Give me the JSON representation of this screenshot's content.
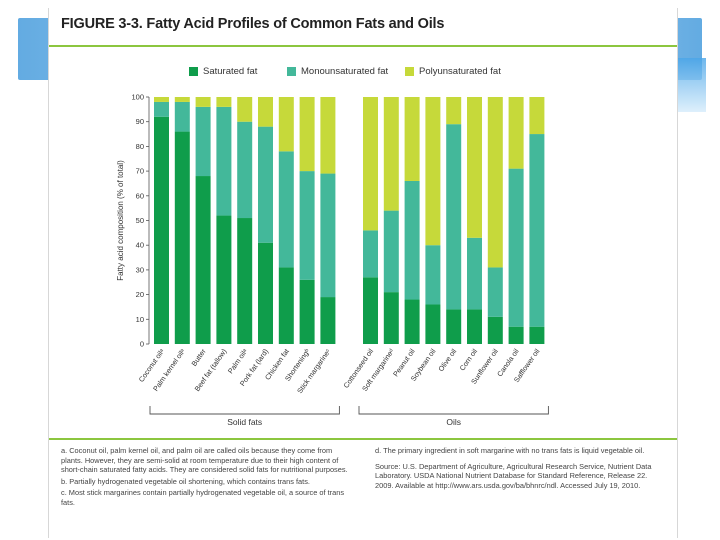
{
  "figure": {
    "title": "FIGURE 3-3. Fatty Acid Profiles of Common Fats and Oils"
  },
  "colors": {
    "saturated": "#0f9d4b",
    "mono": "#43b89a",
    "poly": "#c6d93a",
    "accent_rule": "#8cc63f"
  },
  "chart_data": {
    "type": "bar",
    "stacked": true,
    "ylabel": "Fatty acid composition (% of total)",
    "ylim": [
      0,
      100
    ],
    "yticks": [
      0,
      10,
      20,
      30,
      40,
      50,
      60,
      70,
      80,
      90,
      100
    ],
    "legend": [
      "Saturated fat",
      "Monounsaturated fat",
      "Polyunsaturated fat"
    ],
    "legend_position": "top",
    "groups": [
      {
        "label": "Solid fats",
        "count": 9
      },
      {
        "label": "Oils",
        "count": 9
      }
    ],
    "categories": [
      "Coconut oilᵃ",
      "Palm kernel oilᵃ",
      "Butter",
      "Beef fat (tallow)",
      "Palm oilᵃ",
      "Pork fat (lard)",
      "Chicken fat",
      "Shorteningᵇ",
      "Stick margarineᶜ",
      "Cottonseed oil",
      "Soft margarineᵈ",
      "Peanut oil",
      "Soybean oil",
      "Olive oil",
      "Corn oil",
      "Sunflower oil",
      "Canola oil",
      "Safflower oil"
    ],
    "series": [
      {
        "name": "Saturated fat",
        "values": [
          92,
          86,
          68,
          52,
          51,
          41,
          31,
          26,
          19,
          27,
          21,
          18,
          16,
          14,
          14,
          11,
          7,
          7
        ]
      },
      {
        "name": "Monounsaturated fat",
        "values": [
          6,
          12,
          28,
          44,
          39,
          47,
          47,
          44,
          50,
          19,
          33,
          48,
          24,
          75,
          29,
          20,
          64,
          78
        ]
      },
      {
        "name": "Polyunsaturated fat",
        "values": [
          2,
          2,
          4,
          4,
          10,
          12,
          22,
          30,
          31,
          54,
          46,
          34,
          60,
          11,
          57,
          69,
          29,
          15
        ]
      }
    ]
  },
  "notes": {
    "a": "a. Coconut oil, palm kernel oil, and palm oil are called oils because they come from plants. However, they are semi-solid at room temperature due to their high content of short-chain saturated fatty acids. They are considered solid fats for nutritional purposes.",
    "b": "b. Partially hydrogenated vegetable oil shortening, which contains trans fats.",
    "c": "c. Most stick margarines contain partially hydrogenated vegetable oil, a source of trans fats.",
    "d": "d. The primary ingredient in soft margarine with no trans fats is liquid vegetable oil.",
    "source": "Source: U.S. Department of Agriculture, Agricultural Research Service, Nutrient Data Laboratory. USDA National Nutrient Database for Standard Reference, Release 22. 2009. Available at http://www.ars.usda.gov/ba/bhnrc/ndl. Accessed July 19, 2010."
  }
}
